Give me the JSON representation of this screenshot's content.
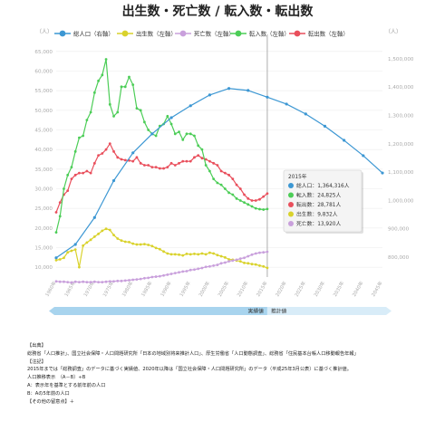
{
  "title": "出生数・死亡数 / 転入数・転出数",
  "chart_data": {
    "type": "line",
    "left_axis": {
      "unit_label": "（人）",
      "ticks": [
        10000,
        15000,
        20000,
        25000,
        30000,
        35000,
        40000,
        45000,
        50000,
        55000,
        60000,
        65000
      ],
      "ylim": [
        7500,
        67500
      ]
    },
    "right_axis": {
      "unit_label": "（人）",
      "ticks": [
        800000,
        900000,
        1000000,
        1100000,
        1200000,
        1300000,
        1400000,
        1500000
      ],
      "ylim": [
        730000,
        1560000
      ]
    },
    "x": {
      "range": [
        1960,
        2045
      ],
      "ticks": [
        "1960年",
        "1965年",
        "1970年",
        "1975年",
        "1980年",
        "1985年",
        "1990年",
        "1995年",
        "2000年",
        "2005年",
        "2010年",
        "2015年",
        "2020年",
        "2025年",
        "2030年",
        "2035年",
        "2040年",
        "2045年"
      ]
    },
    "legend": {
      "position": "top"
    },
    "series": [
      {
        "name": "総人口（右軸）",
        "color": "#3c97d3",
        "axis": "right",
        "points": [
          [
            1960,
            798000
          ],
          [
            1965,
            845000
          ],
          [
            1970,
            940000
          ],
          [
            1975,
            1070000
          ],
          [
            1980,
            1168000
          ],
          [
            1985,
            1235000
          ],
          [
            1990,
            1292000
          ],
          [
            1995,
            1334000
          ],
          [
            2000,
            1372000
          ],
          [
            2005,
            1395000
          ],
          [
            2010,
            1388000
          ],
          [
            2015,
            1364316
          ],
          [
            2020,
            1340000
          ],
          [
            2025,
            1305000
          ],
          [
            2030,
            1262000
          ],
          [
            2035,
            1212000
          ],
          [
            2040,
            1158000
          ],
          [
            2045,
            1097000
          ]
        ]
      },
      {
        "name": "出生数（左軸）",
        "color": "#d9d22c",
        "axis": "left",
        "points": [
          [
            1960,
            11800
          ],
          [
            1961,
            12000
          ],
          [
            1962,
            12400
          ],
          [
            1963,
            13800
          ],
          [
            1964,
            14200
          ],
          [
            1965,
            14500
          ],
          [
            1966,
            10000
          ],
          [
            1967,
            15500
          ],
          [
            1968,
            16300
          ],
          [
            1969,
            17000
          ],
          [
            1970,
            17800
          ],
          [
            1971,
            18500
          ],
          [
            1972,
            19300
          ],
          [
            1973,
            19800
          ],
          [
            1974,
            19500
          ],
          [
            1975,
            18200
          ],
          [
            1976,
            17300
          ],
          [
            1977,
            16800
          ],
          [
            1978,
            16500
          ],
          [
            1979,
            16400
          ],
          [
            1980,
            16000
          ],
          [
            1981,
            15800
          ],
          [
            1982,
            15800
          ],
          [
            1983,
            15900
          ],
          [
            1984,
            15700
          ],
          [
            1985,
            15400
          ],
          [
            1986,
            14900
          ],
          [
            1987,
            14600
          ],
          [
            1988,
            14000
          ],
          [
            1989,
            13500
          ],
          [
            1990,
            13300
          ],
          [
            1991,
            13300
          ],
          [
            1992,
            13200
          ],
          [
            1993,
            13000
          ],
          [
            1994,
            13400
          ],
          [
            1995,
            13300
          ],
          [
            1996,
            13400
          ],
          [
            1997,
            13300
          ],
          [
            1998,
            13500
          ],
          [
            1999,
            13300
          ],
          [
            2000,
            13700
          ],
          [
            2001,
            13500
          ],
          [
            2002,
            13100
          ],
          [
            2003,
            12800
          ],
          [
            2004,
            12500
          ],
          [
            2005,
            12000
          ],
          [
            2006,
            11900
          ],
          [
            2007,
            11700
          ],
          [
            2008,
            11500
          ],
          [
            2009,
            11100
          ],
          [
            2010,
            11000
          ],
          [
            2011,
            10800
          ],
          [
            2012,
            10700
          ],
          [
            2013,
            10400
          ],
          [
            2014,
            10200
          ],
          [
            2015,
            9832
          ]
        ]
      },
      {
        "name": "死亡数（左軸）",
        "color": "#c9a0dc",
        "axis": "left",
        "points": [
          [
            1960,
            6400
          ],
          [
            1961,
            6300
          ],
          [
            1962,
            6300
          ],
          [
            1963,
            6200
          ],
          [
            1964,
            6100
          ],
          [
            1965,
            6300
          ],
          [
            1966,
            6200
          ],
          [
            1967,
            6300
          ],
          [
            1968,
            6200
          ],
          [
            1969,
            6200
          ],
          [
            1970,
            6300
          ],
          [
            1971,
            6200
          ],
          [
            1972,
            6200
          ],
          [
            1973,
            6300
          ],
          [
            1974,
            6400
          ],
          [
            1975,
            6400
          ],
          [
            1976,
            6500
          ],
          [
            1977,
            6500
          ],
          [
            1978,
            6600
          ],
          [
            1979,
            6700
          ],
          [
            1980,
            6800
          ],
          [
            1981,
            6900
          ],
          [
            1982,
            7000
          ],
          [
            1983,
            7200
          ],
          [
            1984,
            7300
          ],
          [
            1985,
            7500
          ],
          [
            1986,
            7600
          ],
          [
            1987,
            7700
          ],
          [
            1988,
            7900
          ],
          [
            1989,
            8100
          ],
          [
            1990,
            8300
          ],
          [
            1991,
            8500
          ],
          [
            1992,
            8700
          ],
          [
            1993,
            8900
          ],
          [
            1994,
            9000
          ],
          [
            1995,
            9300
          ],
          [
            1996,
            9400
          ],
          [
            1997,
            9600
          ],
          [
            1998,
            9800
          ],
          [
            1999,
            10100
          ],
          [
            2000,
            10200
          ],
          [
            2001,
            10400
          ],
          [
            2002,
            10600
          ],
          [
            2003,
            11000
          ],
          [
            2004,
            11200
          ],
          [
            2005,
            11500
          ],
          [
            2006,
            11700
          ],
          [
            2007,
            11900
          ],
          [
            2008,
            12200
          ],
          [
            2009,
            12400
          ],
          [
            2010,
            12800
          ],
          [
            2011,
            13200
          ],
          [
            2012,
            13500
          ],
          [
            2013,
            13700
          ],
          [
            2014,
            13800
          ],
          [
            2015,
            13920
          ]
        ]
      },
      {
        "name": "転入数（左軸）",
        "color": "#4ccd57",
        "axis": "left",
        "points": [
          [
            1960,
            18900
          ],
          [
            1961,
            23000
          ],
          [
            1962,
            30000
          ],
          [
            1963,
            33500
          ],
          [
            1964,
            35500
          ],
          [
            1965,
            39500
          ],
          [
            1966,
            43000
          ],
          [
            1967,
            43500
          ],
          [
            1968,
            47500
          ],
          [
            1969,
            49500
          ],
          [
            1970,
            54500
          ],
          [
            1971,
            57500
          ],
          [
            1972,
            59000
          ],
          [
            1973,
            63000
          ],
          [
            1974,
            51500
          ],
          [
            1975,
            48500
          ],
          [
            1976,
            49500
          ],
          [
            1977,
            56000
          ],
          [
            1978,
            56000
          ],
          [
            1979,
            58500
          ],
          [
            1980,
            56500
          ],
          [
            1981,
            50500
          ],
          [
            1982,
            50000
          ],
          [
            1983,
            47000
          ],
          [
            1984,
            45000
          ],
          [
            1985,
            44000
          ],
          [
            1986,
            43500
          ],
          [
            1987,
            46000
          ],
          [
            1988,
            46500
          ],
          [
            1989,
            48500
          ],
          [
            1990,
            46500
          ],
          [
            1991,
            44000
          ],
          [
            1992,
            44500
          ],
          [
            1993,
            42500
          ],
          [
            1994,
            44000
          ],
          [
            1995,
            44000
          ],
          [
            1996,
            43500
          ],
          [
            1997,
            41000
          ],
          [
            1998,
            40000
          ],
          [
            1999,
            36000
          ],
          [
            2000,
            34500
          ],
          [
            2001,
            32500
          ],
          [
            2002,
            31500
          ],
          [
            2003,
            31000
          ],
          [
            2004,
            30000
          ],
          [
            2005,
            29000
          ],
          [
            2006,
            28500
          ],
          [
            2007,
            27500
          ],
          [
            2008,
            27000
          ],
          [
            2009,
            26500
          ],
          [
            2010,
            26000
          ],
          [
            2011,
            25500
          ],
          [
            2012,
            25000
          ],
          [
            2013,
            24800
          ],
          [
            2014,
            24700
          ],
          [
            2015,
            24825
          ]
        ]
      },
      {
        "name": "転出数（左軸）",
        "color": "#e94f5c",
        "axis": "left",
        "points": [
          [
            1960,
            24000
          ],
          [
            1961,
            26500
          ],
          [
            1962,
            28500
          ],
          [
            1963,
            29500
          ],
          [
            1964,
            32500
          ],
          [
            1965,
            33500
          ],
          [
            1966,
            34000
          ],
          [
            1967,
            34000
          ],
          [
            1968,
            34500
          ],
          [
            1969,
            34000
          ],
          [
            1970,
            36500
          ],
          [
            1971,
            38500
          ],
          [
            1972,
            39000
          ],
          [
            1973,
            40000
          ],
          [
            1974,
            41500
          ],
          [
            1975,
            39500
          ],
          [
            1976,
            38000
          ],
          [
            1977,
            37500
          ],
          [
            1978,
            37300
          ],
          [
            1979,
            37200
          ],
          [
            1980,
            37000
          ],
          [
            1981,
            38000
          ],
          [
            1982,
            36500
          ],
          [
            1983,
            36000
          ],
          [
            1984,
            36000
          ],
          [
            1985,
            35500
          ],
          [
            1986,
            35500
          ],
          [
            1987,
            35200
          ],
          [
            1988,
            35200
          ],
          [
            1989,
            35500
          ],
          [
            1990,
            36500
          ],
          [
            1991,
            36000
          ],
          [
            1992,
            36500
          ],
          [
            1993,
            37000
          ],
          [
            1994,
            37000
          ],
          [
            1995,
            37000
          ],
          [
            1996,
            38000
          ],
          [
            1997,
            38500
          ],
          [
            1998,
            37800
          ],
          [
            1999,
            37500
          ],
          [
            2000,
            37000
          ],
          [
            2001,
            36500
          ],
          [
            2002,
            36000
          ],
          [
            2003,
            34500
          ],
          [
            2004,
            34000
          ],
          [
            2005,
            33500
          ],
          [
            2006,
            32500
          ],
          [
            2007,
            31000
          ],
          [
            2008,
            30000
          ],
          [
            2009,
            28500
          ],
          [
            2010,
            27500
          ],
          [
            2011,
            27000
          ],
          [
            2012,
            27000
          ],
          [
            2013,
            27300
          ],
          [
            2014,
            28000
          ],
          [
            2015,
            28781
          ]
        ]
      }
    ],
    "tooltip": {
      "title": "2015年",
      "rows": [
        {
          "label": "総人口：1,364,316人",
          "color": "#3c97d3"
        },
        {
          "label": "転入数：24,825人",
          "color": "#4ccd57"
        },
        {
          "label": "転出数：28,781人",
          "color": "#e94f5c"
        },
        {
          "label": "出生数：9,832人",
          "color": "#d9d22c"
        },
        {
          "label": "死亡数：13,920人",
          "color": "#c9a0dc"
        }
      ]
    },
    "bands": [
      {
        "label": "実績値",
        "from": 1960,
        "to": 2015
      },
      {
        "label": "推計値",
        "from": 2015,
        "to": 2045
      }
    ],
    "divider_year": 2015
  },
  "notes": {
    "source_head": "【出典】",
    "source_text": "総務省「人口推計」、国立社会保障・人口問題研究所「日本の地域別将来推計人口」、厚生労働省「人口動態調査」、総務省「住民基本台帳人口移動報告年報」",
    "note_head": "【注記】",
    "note_text": "2015年までは「総務調査」のデータに基づく実績値、2020年以降は「国立社会保障・人口問題研究所」のデータ（平成25年3月公表）に基づく推計値。",
    "formula": "人口推移表示　（A－B）÷B",
    "a_line": "A：表示年を基準とする前年前の人口",
    "b_line": "B：Aの5年前の人口",
    "more": "【その他の留意点】＋"
  }
}
